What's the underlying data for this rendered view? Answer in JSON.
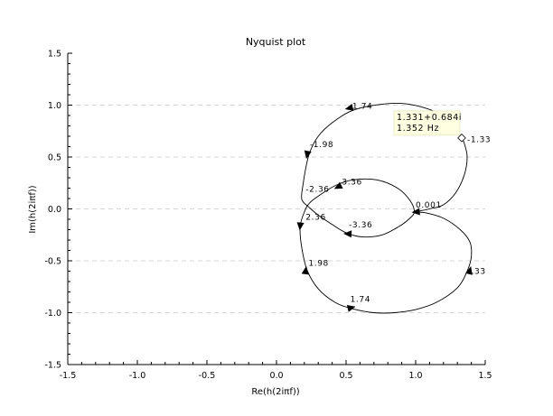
{
  "chart_data": {
    "type": "line",
    "title": "Nyquist plot",
    "xlabel": "Re(h(2iπf))",
    "ylabel": "Im(h(2iπf))",
    "xlim": [
      -1.5,
      1.5
    ],
    "ylim": [
      -1.5,
      1.5
    ],
    "xticks": [
      "-1.5",
      "-1.0",
      "-0.5",
      "0.0",
      "0.5",
      "1.0",
      "1.5"
    ],
    "yticks": [
      "1.5",
      "1.0",
      "0.5",
      "0.0",
      "-0.5",
      "-1.0",
      "-1.5"
    ],
    "grid": "horizontal-dashed",
    "series": [
      {
        "values": [
          {
            "x": 0.99,
            "y": -0.03
          },
          {
            "x": 1.03,
            "y": -0.02
          },
          {
            "x": 1.1,
            "y": 0.0
          },
          {
            "x": 1.2,
            "y": 0.04
          },
          {
            "x": 1.29,
            "y": 0.16
          },
          {
            "x": 1.35,
            "y": 0.33
          },
          {
            "x": 1.37,
            "y": 0.5
          },
          {
            "x": 1.35,
            "y": 0.63
          },
          {
            "x": 1.331,
            "y": 0.684
          },
          {
            "x": 1.27,
            "y": 0.8
          },
          {
            "x": 1.15,
            "y": 0.93
          },
          {
            "x": 0.95,
            "y": 1.01
          },
          {
            "x": 0.76,
            "y": 1.01
          },
          {
            "x": 0.55,
            "y": 0.95
          },
          {
            "x": 0.4,
            "y": 0.83
          },
          {
            "x": 0.3,
            "y": 0.7
          },
          {
            "x": 0.24,
            "y": 0.55
          },
          {
            "x": 0.21,
            "y": 0.39
          },
          {
            "x": 0.19,
            "y": 0.23
          },
          {
            "x": 0.18,
            "y": 0.12
          },
          {
            "x": 0.19,
            "y": 0.07
          },
          {
            "x": 0.23,
            "y": 0.02
          },
          {
            "x": 0.3,
            "y": -0.06
          },
          {
            "x": 0.4,
            "y": -0.15
          },
          {
            "x": 0.5,
            "y": -0.23
          },
          {
            "x": 0.62,
            "y": -0.27
          },
          {
            "x": 0.76,
            "y": -0.25
          },
          {
            "x": 0.88,
            "y": -0.17
          },
          {
            "x": 0.95,
            "y": -0.1
          },
          {
            "x": 0.99,
            "y": -0.03
          },
          {
            "x": 0.96,
            "y": 0.08
          },
          {
            "x": 0.87,
            "y": 0.2
          },
          {
            "x": 0.72,
            "y": 0.28
          },
          {
            "x": 0.55,
            "y": 0.28
          },
          {
            "x": 0.43,
            "y": 0.23
          },
          {
            "x": 0.33,
            "y": 0.15
          },
          {
            "x": 0.24,
            "y": 0.06
          },
          {
            "x": 0.2,
            "y": -0.03
          },
          {
            "x": 0.17,
            "y": -0.17
          },
          {
            "x": 0.18,
            "y": -0.36
          },
          {
            "x": 0.22,
            "y": -0.59
          },
          {
            "x": 0.3,
            "y": -0.77
          },
          {
            "x": 0.42,
            "y": -0.9
          },
          {
            "x": 0.54,
            "y": -0.96
          },
          {
            "x": 0.7,
            "y": -1.0
          },
          {
            "x": 0.85,
            "y": -1.0
          },
          {
            "x": 1.0,
            "y": -0.97
          },
          {
            "x": 1.15,
            "y": -0.9
          },
          {
            "x": 1.3,
            "y": -0.76
          },
          {
            "x": 1.37,
            "y": -0.6
          },
          {
            "x": 1.4,
            "y": -0.46
          },
          {
            "x": 1.39,
            "y": -0.32
          },
          {
            "x": 1.32,
            "y": -0.2
          },
          {
            "x": 1.2,
            "y": -0.09
          },
          {
            "x": 1.08,
            "y": -0.04
          },
          {
            "x": 1.01,
            "y": -0.03
          }
        ]
      }
    ],
    "arrows": [
      {
        "x": 1.0,
        "y": -0.03,
        "dx": -1,
        "dy": -0.1
      },
      {
        "x": 0.52,
        "y": 0.97,
        "dx": -1,
        "dy": -0.25
      },
      {
        "x": 0.22,
        "y": 0.52,
        "dx": -0.2,
        "dy": -1
      },
      {
        "x": 0.44,
        "y": 0.21,
        "dx": -1,
        "dy": -0.5
      },
      {
        "x": 0.51,
        "y": -0.24,
        "dx": -1,
        "dy": 0.05
      },
      {
        "x": 0.17,
        "y": -0.17,
        "dx": -0.1,
        "dy": -1
      },
      {
        "x": 0.21,
        "y": -0.59,
        "dx": 0.15,
        "dy": 1
      },
      {
        "x": 0.54,
        "y": -0.95,
        "dx": 1,
        "dy": 0.25
      },
      {
        "x": 1.39,
        "y": -0.59,
        "dx": 0.25,
        "dy": 1
      }
    ],
    "freq_labels": [
      {
        "text": "-1.74",
        "x": 0.52,
        "y": 0.99
      },
      {
        "text": "-1.98",
        "x": 0.24,
        "y": 0.62
      },
      {
        "text": "-1.33",
        "x": 1.37,
        "y": 0.67
      },
      {
        "text": "3.36",
        "x": 0.47,
        "y": 0.26
      },
      {
        "text": "-2.36",
        "x": 0.21,
        "y": 0.19
      },
      {
        "text": "0.001",
        "x": 1.0,
        "y": 0.04
      },
      {
        "text": "2.36",
        "x": 0.21,
        "y": -0.08
      },
      {
        "text": "-3.36",
        "x": 0.52,
        "y": -0.15
      },
      {
        "text": "1.98",
        "x": 0.23,
        "y": -0.52
      },
      {
        "text": "1.74",
        "x": 0.53,
        "y": -0.87
      },
      {
        "text": ".33",
        "x": 1.4,
        "y": -0.6
      }
    ],
    "datatip": {
      "x": 1.331,
      "y": 0.684,
      "line1": "1.331+0.684i",
      "line2": "1.352 Hz"
    }
  }
}
